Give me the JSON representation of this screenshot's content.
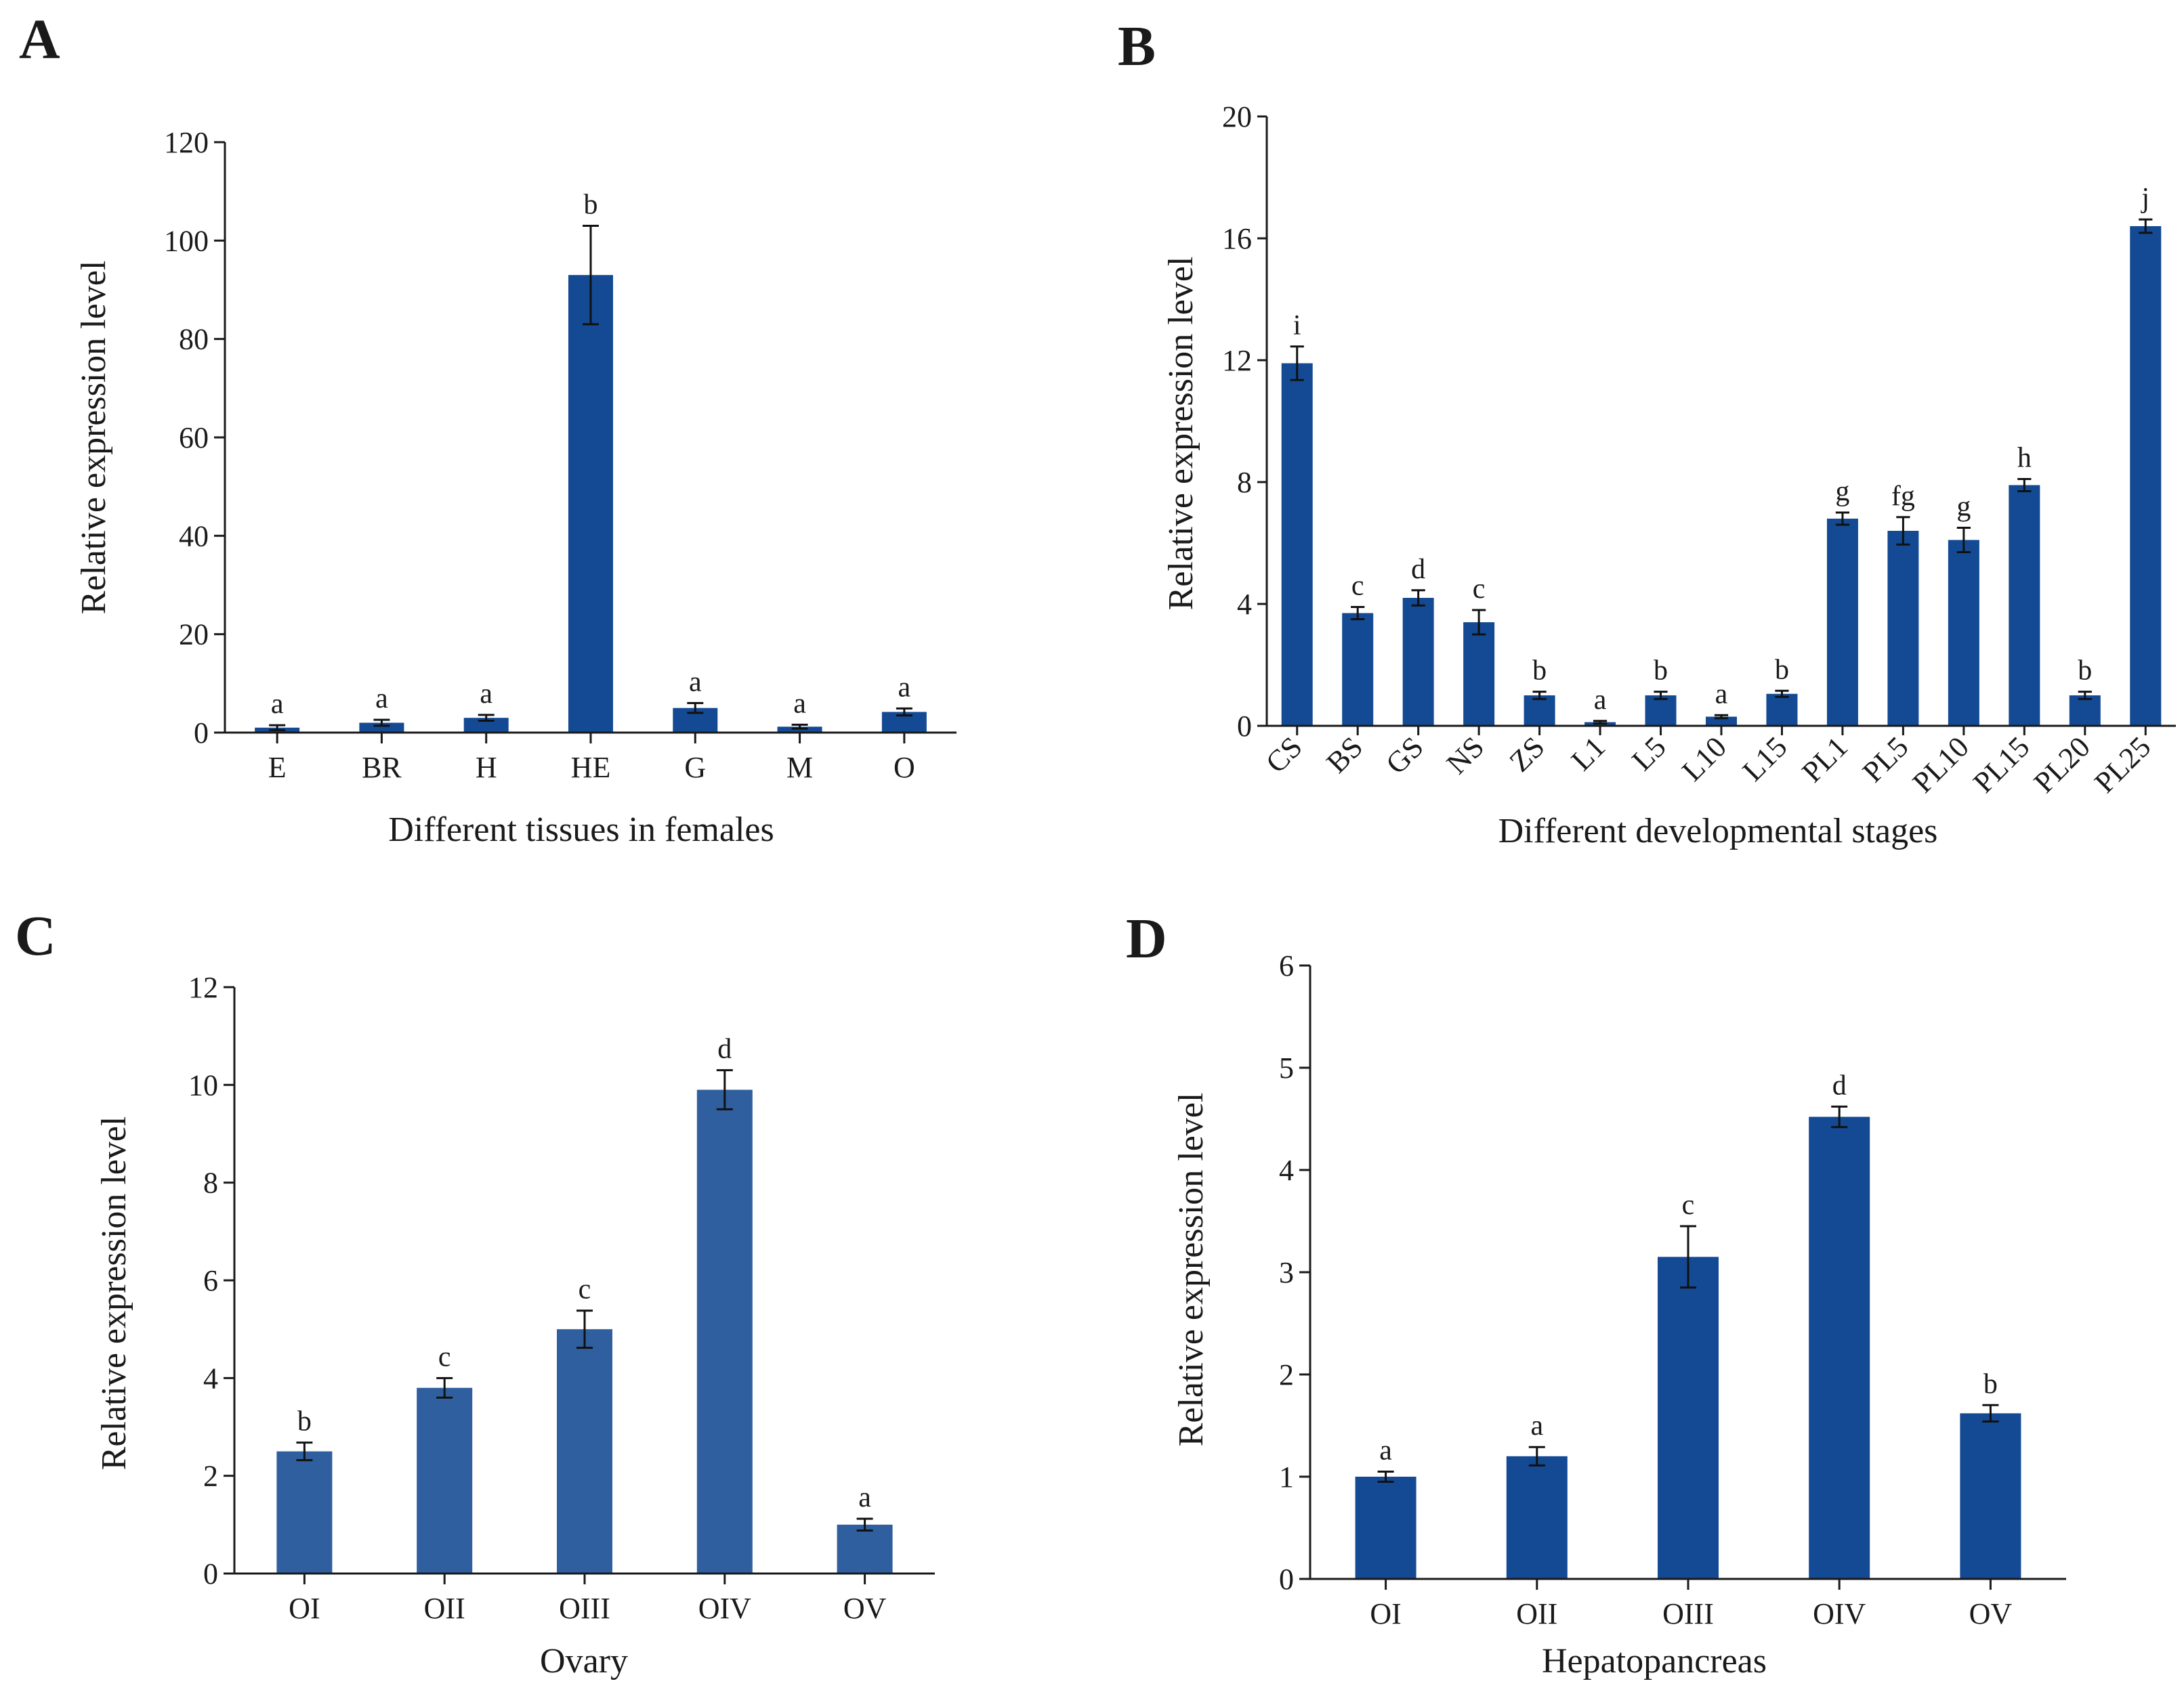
{
  "colors": {
    "bar_dark": "#134a93",
    "bar_light": "#2f5f9f",
    "axis": "#1a1a1a"
  },
  "chart_data": [
    {
      "panel": "A",
      "type": "bar",
      "xlabel": "Different tissues in females",
      "ylabel": "Relative expression level",
      "ylim": [
        0,
        120
      ],
      "yticks": [
        0,
        20,
        40,
        60,
        80,
        100,
        120
      ],
      "categories": [
        "E",
        "BR",
        "H",
        "HE",
        "G",
        "M",
        "O"
      ],
      "values": [
        1.0,
        2.0,
        3.0,
        93.0,
        5.0,
        1.2,
        4.2
      ],
      "errors": [
        0.5,
        0.6,
        0.6,
        10.0,
        1.0,
        0.4,
        0.7
      ],
      "letters": [
        "a",
        "a",
        "a",
        "b",
        "a",
        "a",
        "a"
      ]
    },
    {
      "panel": "B",
      "type": "bar",
      "xlabel": "Different developmental stages",
      "ylabel": "Relative expression level",
      "ylim": [
        0,
        20
      ],
      "yticks": [
        0,
        4,
        8,
        12,
        16,
        20
      ],
      "categories": [
        "CS",
        "BS",
        "GS",
        "NS",
        "ZS",
        "L1",
        "L5",
        "L10",
        "L15",
        "PL1",
        "PL5",
        "PL10",
        "PL15",
        "PL20",
        "PL25"
      ],
      "values": [
        11.9,
        3.7,
        4.2,
        3.4,
        1.0,
        0.12,
        1.0,
        0.3,
        1.05,
        6.8,
        6.4,
        6.1,
        7.9,
        1.0,
        16.4
      ],
      "errors": [
        0.55,
        0.2,
        0.25,
        0.4,
        0.12,
        0.04,
        0.12,
        0.05,
        0.1,
        0.2,
        0.45,
        0.4,
        0.2,
        0.12,
        0.22
      ],
      "letters": [
        "i",
        "c",
        "d",
        "c",
        "b",
        "a",
        "b",
        "a",
        "b",
        "g",
        "fg",
        "g",
        "h",
        "b",
        "j"
      ]
    },
    {
      "panel": "C",
      "type": "bar",
      "xlabel": "Ovary",
      "ylabel": "Relative expression level",
      "ylim": [
        0,
        12
      ],
      "yticks": [
        0,
        2,
        4,
        6,
        8,
        10,
        12
      ],
      "categories": [
        "OI",
        "OII",
        "OIII",
        "OIV",
        "OV"
      ],
      "values": [
        2.5,
        3.8,
        5.0,
        9.9,
        1.0
      ],
      "errors": [
        0.18,
        0.2,
        0.38,
        0.4,
        0.12
      ],
      "letters": [
        "b",
        "c",
        "c",
        "d",
        "a"
      ]
    },
    {
      "panel": "D",
      "type": "bar",
      "xlabel": "Hepatopancreas",
      "ylabel": "Relative expression level",
      "ylim": [
        0,
        6
      ],
      "yticks": [
        0,
        1,
        2,
        3,
        4,
        5,
        6
      ],
      "categories": [
        "OI",
        "OII",
        "OIII",
        "OIV",
        "OV"
      ],
      "values": [
        1.0,
        1.2,
        3.15,
        4.52,
        1.62
      ],
      "errors": [
        0.05,
        0.09,
        0.3,
        0.1,
        0.08
      ],
      "letters": [
        "a",
        "a",
        "c",
        "d",
        "b"
      ]
    }
  ]
}
